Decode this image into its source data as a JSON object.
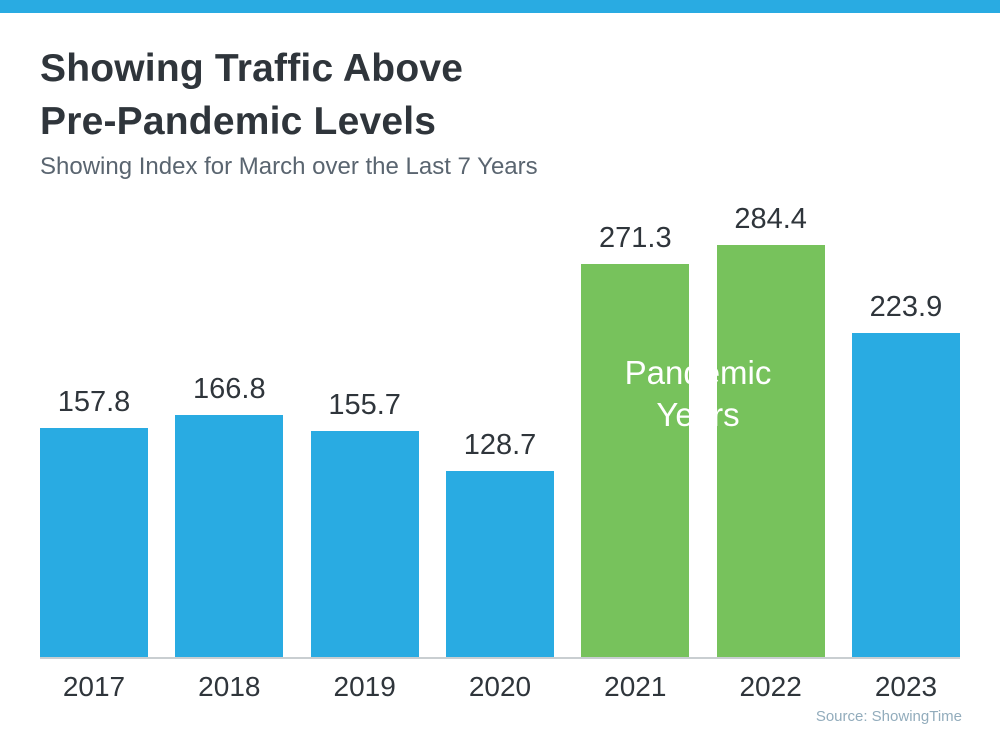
{
  "page": {
    "accent_color": "#29ABE2",
    "title_line1": "Showing Traffic Above",
    "title_line2": "Pre-Pandemic Levels",
    "subtitle": "Showing Index for March over the Last 7 Years",
    "source": "Source: ShowingTime"
  },
  "chart_data": {
    "type": "bar",
    "title": "Showing Traffic Above Pre-Pandemic Levels",
    "subtitle": "Showing Index for March over the Last 7 Years",
    "categories": [
      "2017",
      "2018",
      "2019",
      "2020",
      "2021",
      "2022",
      "2023"
    ],
    "values": [
      157.8,
      166.8,
      155.7,
      128.7,
      271.3,
      284.4,
      223.9
    ],
    "bar_colors": [
      "#29ABE2",
      "#29ABE2",
      "#29ABE2",
      "#29ABE2",
      "#77C25C",
      "#77C25C",
      "#29ABE2"
    ],
    "default_color": "#29ABE2",
    "highlight_color": "#77C25C",
    "annotation": "Pandemic Years",
    "annotation_line1": "Pandemic",
    "annotation_line2": "Years",
    "annotation_years": [
      "2021",
      "2022"
    ],
    "xlabel": "",
    "ylabel": "",
    "ylim": [
      0,
      300
    ],
    "grid": false,
    "legend": false,
    "value_labels": true,
    "source": "Source: ShowingTime"
  }
}
